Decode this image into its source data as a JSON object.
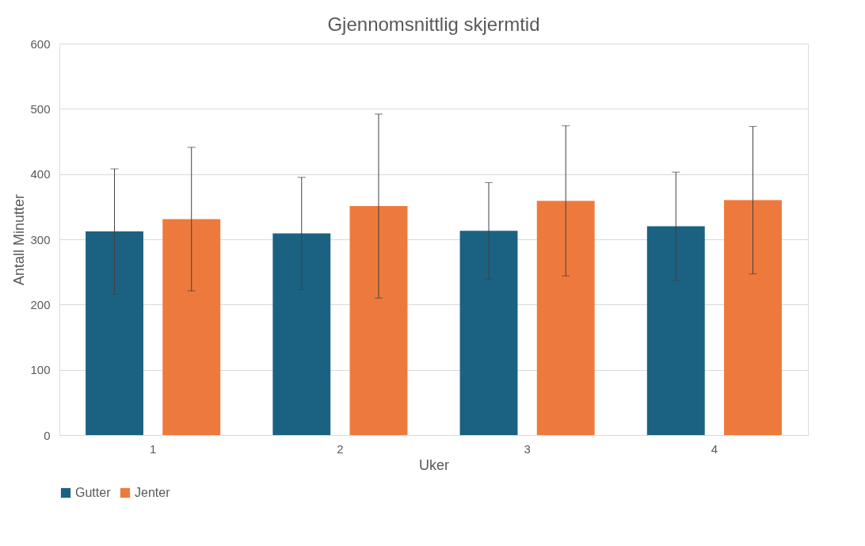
{
  "chart_data": {
    "type": "bar",
    "title": "Gjennomsnittlig skjermtid",
    "xlabel": "Uker",
    "ylabel": "Antall Minutter",
    "categories": [
      "1",
      "2",
      "3",
      "4"
    ],
    "series": [
      {
        "name": "Gutter",
        "color": "#1b6282",
        "values": [
          312,
          309,
          313,
          320
        ],
        "errors": [
          96,
          86,
          74,
          83
        ]
      },
      {
        "name": "Jenter",
        "color": "#ed7a3c",
        "values": [
          331,
          351,
          359,
          360
        ],
        "errors": [
          110,
          141,
          115,
          113
        ]
      }
    ],
    "ylim": [
      0,
      600
    ],
    "yticks": [
      0,
      100,
      200,
      300,
      400,
      500,
      600
    ],
    "grid": "y",
    "legend": "bottom"
  }
}
